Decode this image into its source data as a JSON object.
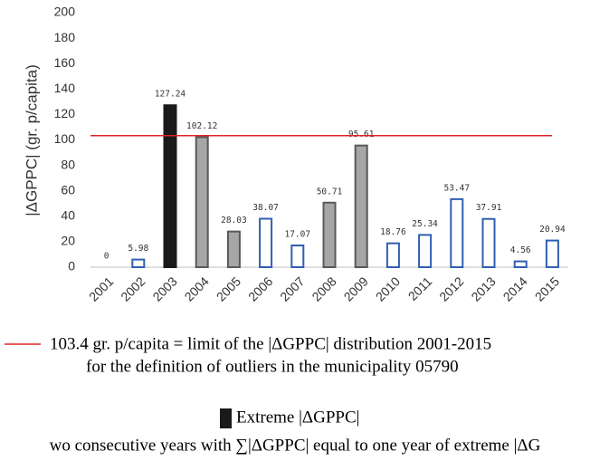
{
  "chart_data": {
    "type": "bar",
    "y_label": "|ΔGPPC| (gr. p/capita)",
    "categories": [
      "2001",
      "2002",
      "2003",
      "2004",
      "2005",
      "2006",
      "2007",
      "2008",
      "2009",
      "2010",
      "2011",
      "2012",
      "2013",
      "2014",
      "2015"
    ],
    "values": [
      0,
      5.98,
      127.24,
      102.12,
      28.03,
      38.07,
      17.07,
      50.71,
      95.61,
      18.76,
      25.34,
      53.47,
      37.91,
      4.56,
      20.94
    ],
    "fill_colors": [
      "#ffffff",
      "#ffffff",
      "#1a1a1a",
      "#a6a6a6",
      "#a6a6a6",
      "#ffffff",
      "#ffffff",
      "#a6a6a6",
      "#a6a6a6",
      "#ffffff",
      "#ffffff",
      "#ffffff",
      "#ffffff",
      "#ffffff",
      "#ffffff"
    ],
    "edge_colors": [
      "#2f5fb0",
      "#2f5fb0",
      "#1a1a1a",
      "#595959",
      "#595959",
      "#2f5fb0",
      "#2f5fb0",
      "#595959",
      "#595959",
      "#2f5fb0",
      "#2f5fb0",
      "#2f5fb0",
      "#2f5fb0",
      "#2f5fb0",
      "#2f5fb0"
    ],
    "ylim": [
      0,
      200
    ],
    "yticks": [
      0,
      20,
      40,
      60,
      80,
      100,
      120,
      140,
      160,
      180,
      200
    ],
    "grid": false,
    "reference_line": {
      "value": 103.4,
      "color": "#e02424",
      "label": [
        "103.4 gr. p/capita = limit of the |ΔGPPC| distribution 2001-2015",
        "for the definition of outliers in the municipality 05790"
      ]
    },
    "legend": [
      {
        "label": "Extreme |ΔGPPC|",
        "color": "#1a1a1a"
      }
    ],
    "footnote": "wo consecutive years with ∑|ΔGPPC| equal to one year of extreme |ΔG"
  }
}
